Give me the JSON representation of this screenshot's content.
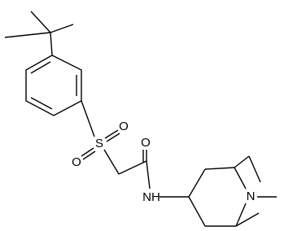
{
  "nodes": [
    {
      "label": "S"
    },
    {
      "label": "O"
    },
    {
      "label": "O"
    },
    {
      "label": "O"
    },
    {
      "label": "NH"
    },
    {
      "label": "N"
    }
  ]
}
